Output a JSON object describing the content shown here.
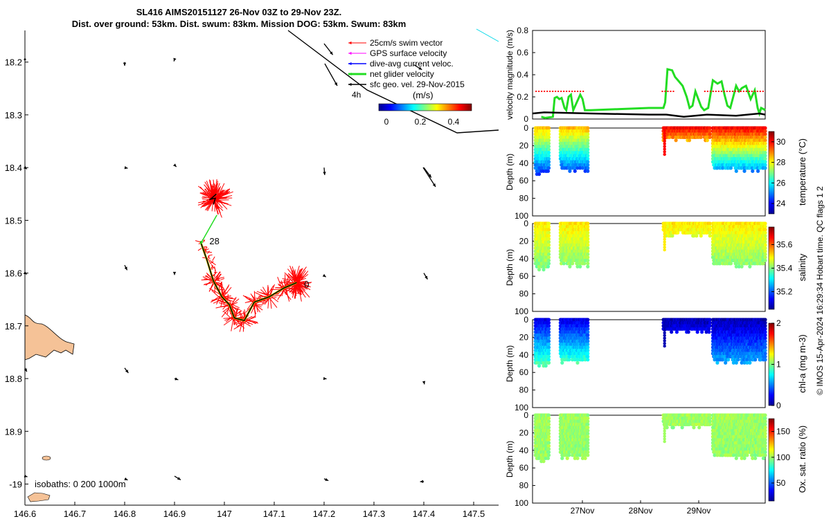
{
  "title_line1": "SL416 AIMS20151127 26-Nov 03Z to 29-Nov 23Z.",
  "title_line2": "Dist. over ground: 53km. Dist. swum: 83km. Mission DOG: 53km. Swum: 83km",
  "credit": "© IMOS 15-Apr-2024 16:29:34 Hobart time. QC flags 1  2",
  "colors": {
    "swim": "#ff0000",
    "gps": "#ff00ff",
    "diveavg": "#0000ff",
    "net": "#22dd22",
    "geo": "#000000",
    "land": "#f5c297"
  },
  "map": {
    "legend": [
      "25cm/s swim vector",
      "GPS surface velocity",
      "dive-avg current veloc.",
      "net glider velocity",
      "sfc geo. vel. 29-Nov-2015"
    ],
    "scale_label": "4h",
    "colorbar_label": "(m/s)",
    "colorbar_ticks": [
      "0",
      "0.2",
      "0.4"
    ],
    "day_labels": [
      "28",
      "0"
    ],
    "isobaths_label": "isobaths: 0   200  1000m"
  },
  "chart_data": [
    {
      "type": "map",
      "x_ticks": [
        "146.6",
        "146.7",
        "146.8",
        "146.9",
        "147",
        "147.1",
        "147.2",
        "147.3",
        "147.4",
        "147.5"
      ],
      "x_values": [
        146.6,
        146.7,
        146.8,
        146.9,
        147.0,
        147.1,
        147.2,
        147.3,
        147.4,
        147.5
      ],
      "y_ticks": [
        "18.2",
        "18.3",
        "18.4",
        "18.5",
        "18.6",
        "18.7",
        "18.8",
        "18.9",
        "-19"
      ],
      "y_values": [
        18.2,
        18.3,
        18.4,
        18.5,
        18.6,
        18.7,
        18.8,
        18.9,
        19.0
      ],
      "xlim": [
        146.6,
        147.55
      ],
      "ylim": [
        18.14,
        19.04
      ],
      "track": [
        [
          146.952,
          18.54
        ],
        [
          146.965,
          18.575
        ],
        [
          146.978,
          18.615
        ],
        [
          146.995,
          18.645
        ],
        [
          147.01,
          18.66
        ],
        [
          147.02,
          18.685
        ],
        [
          147.04,
          18.69
        ],
        [
          147.06,
          18.655
        ],
        [
          147.09,
          18.645
        ],
        [
          147.12,
          18.628
        ],
        [
          147.145,
          18.618
        ]
      ],
      "loop": [
        [
          146.978,
          18.47
        ],
        [
          146.982,
          18.458
        ],
        [
          146.972,
          18.46
        ],
        [
          146.984,
          18.45
        ]
      ],
      "geo_vectors": [
        {
          "lon": 146.6,
          "lat": 18.195,
          "u": 0.1,
          "v": 0.25
        },
        {
          "lon": 146.8,
          "lat": 18.2,
          "u": 0.0,
          "v": 0.6
        },
        {
          "lon": 146.9,
          "lat": 18.195,
          "u": -0.1,
          "v": 0.3
        },
        {
          "lon": 147.2,
          "lat": 18.165,
          "u": 1.4,
          "v": 1.8
        },
        {
          "lon": 147.38,
          "lat": 18.205,
          "u": 1.3,
          "v": 0.8
        },
        {
          "lon": 146.6,
          "lat": 18.4,
          "u": 0.3,
          "v": 0.25
        },
        {
          "lon": 146.8,
          "lat": 18.4,
          "u": 0.5,
          "v": 0.1
        },
        {
          "lon": 146.9,
          "lat": 18.395,
          "u": 0.3,
          "v": 0.3
        },
        {
          "lon": 147.2,
          "lat": 18.4,
          "u": 0.1,
          "v": 1.2
        },
        {
          "lon": 147.4,
          "lat": 18.4,
          "u": 1.2,
          "v": 1.6
        },
        {
          "lon": 146.6,
          "lat": 18.6,
          "u": 0.3,
          "v": 0.2
        },
        {
          "lon": 146.8,
          "lat": 18.585,
          "u": 0.4,
          "v": 0.8
        },
        {
          "lon": 146.9,
          "lat": 18.6,
          "u": 0.0,
          "v": 0.3
        },
        {
          "lon": 147.2,
          "lat": 18.605,
          "u": 0.3,
          "v": 0.2
        },
        {
          "lon": 147.4,
          "lat": 18.6,
          "u": 0.6,
          "v": 1.0
        },
        {
          "lon": 146.6,
          "lat": 18.78,
          "u": 0.3,
          "v": 0.6
        },
        {
          "lon": 146.8,
          "lat": 18.78,
          "u": 0.6,
          "v": 0.8
        },
        {
          "lon": 146.9,
          "lat": 18.8,
          "u": 0.6,
          "v": 0.2
        },
        {
          "lon": 147.2,
          "lat": 18.8,
          "u": 0.4,
          "v": 0.05
        },
        {
          "lon": 147.4,
          "lat": 18.805,
          "u": 0.1,
          "v": 0.5
        },
        {
          "lon": 146.6,
          "lat": 18.985,
          "u": 0.4,
          "v": 0.1
        },
        {
          "lon": 146.8,
          "lat": 18.99,
          "u": 0.5,
          "v": 0.2
        },
        {
          "lon": 146.9,
          "lat": 18.985,
          "u": 1.0,
          "v": 0.6
        },
        {
          "lon": 147.2,
          "lat": 18.99,
          "u": 0.7,
          "v": 0.3
        },
        {
          "lon": 147.4,
          "lat": 18.995,
          "u": -0.6,
          "v": 0.05
        }
      ]
    },
    {
      "type": "line",
      "ylabel": "velocity magnitude (m/s)",
      "y_ticks": [
        "0",
        "0.2",
        "0.4",
        "0.6",
        "0.8"
      ],
      "ylim": [
        0,
        0.8
      ],
      "series": [
        {
          "role": "net",
          "x": [
            0.15,
            0.22,
            0.35,
            0.38,
            0.42,
            0.46,
            0.5,
            0.55,
            0.58,
            0.62,
            0.66,
            0.7,
            0.82,
            0.86,
            0.9,
            1.0,
            1.5,
            2.0,
            2.25,
            2.28,
            2.32,
            2.4,
            2.45,
            2.5,
            2.58,
            2.65,
            2.7,
            2.75,
            2.8,
            2.85,
            2.9,
            2.95,
            3.02,
            3.1,
            3.18,
            3.25,
            3.3,
            3.35,
            3.4,
            3.45,
            3.5,
            3.55,
            3.6,
            3.67,
            3.75,
            3.82,
            3.87,
            3.9,
            3.93,
            3.97,
            4.0
          ],
          "y": [
            0.02,
            0.01,
            0.02,
            0.19,
            0.2,
            0.18,
            0.19,
            0.1,
            0.08,
            0.2,
            0.22,
            0.08,
            0.22,
            0.18,
            0.08,
            0.08,
            0.09,
            0.1,
            0.1,
            0.15,
            0.45,
            0.44,
            0.38,
            0.35,
            0.3,
            0.2,
            0.1,
            0.12,
            0.25,
            0.18,
            0.11,
            0.08,
            0.1,
            0.35,
            0.32,
            0.34,
            0.22,
            0.12,
            0.1,
            0.2,
            0.3,
            0.25,
            0.28,
            0.3,
            0.18,
            0.26,
            0.1,
            0.05,
            0.1,
            0.09,
            0.08
          ]
        },
        {
          "role": "swim",
          "x": [
            0.05,
            0.9,
            2.22,
            2.45,
            2.95,
            4.0
          ],
          "y": [
            0.25,
            0.25,
            0.25,
            0.25,
            0.25,
            0.25
          ]
        },
        {
          "role": "geo",
          "x": [
            0.0,
            0.2,
            1.0,
            2.0,
            2.3,
            2.6,
            3.0,
            3.5,
            3.9,
            4.0
          ],
          "y": [
            0.05,
            0.06,
            0.05,
            0.04,
            0.04,
            0.02,
            0.04,
            0.03,
            0.05,
            0.04
          ]
        }
      ]
    },
    {
      "type": "heatmap",
      "ylabel": "Depth (m)",
      "clabel": "temperature (°C)",
      "y_ticks": [
        "0",
        "20",
        "40",
        "60",
        "80",
        "100"
      ],
      "ylim": [
        0,
        100
      ],
      "c_ticks": [
        "24",
        "26",
        "28",
        "30"
      ],
      "crange": [
        23,
        31
      ],
      "surface_value": 28.5,
      "deep_value": 24.5,
      "surface_value2": 30.0,
      "deep_value2": 25.0
    },
    {
      "type": "heatmap",
      "ylabel": "Depth (m)",
      "clabel": "salinity",
      "y_ticks": [
        "0",
        "20",
        "40",
        "60",
        "80",
        "100"
      ],
      "ylim": [
        0,
        100
      ],
      "c_ticks": [
        "35.2",
        "35.4",
        "35.6"
      ],
      "crange": [
        35.05,
        35.75
      ],
      "surface_value": 35.5,
      "deep_value": 35.4,
      "surface_value2": 35.5,
      "deep_value2": 35.4
    },
    {
      "type": "heatmap",
      "ylabel": "Depth (m)",
      "clabel": "chl-a (mg m-3)",
      "y_ticks": [
        "0",
        "20",
        "40",
        "60",
        "80",
        "100"
      ],
      "ylim": [
        0,
        100
      ],
      "c_ticks": [
        "0",
        "1",
        "2"
      ],
      "crange": [
        0,
        2
      ],
      "surface_value": 0.2,
      "deep_value": 0.9,
      "surface_value2": 0.1,
      "deep_value2": 0.6
    },
    {
      "type": "heatmap",
      "ylabel": "Depth (m)",
      "clabel": "Ox. sat. ratio (%)",
      "y_ticks": [
        "0",
        "20",
        "40",
        "60",
        "80",
        "100"
      ],
      "ylim": [
        0,
        100
      ],
      "c_ticks": [
        "50",
        "100",
        "150"
      ],
      "crange": [
        15,
        175
      ],
      "surface_value": 100,
      "deep_value": 98,
      "surface_value2": 100,
      "deep_value2": 98,
      "x_ticks": [
        "27Nov",
        "28Nov",
        "29Nov"
      ]
    }
  ]
}
